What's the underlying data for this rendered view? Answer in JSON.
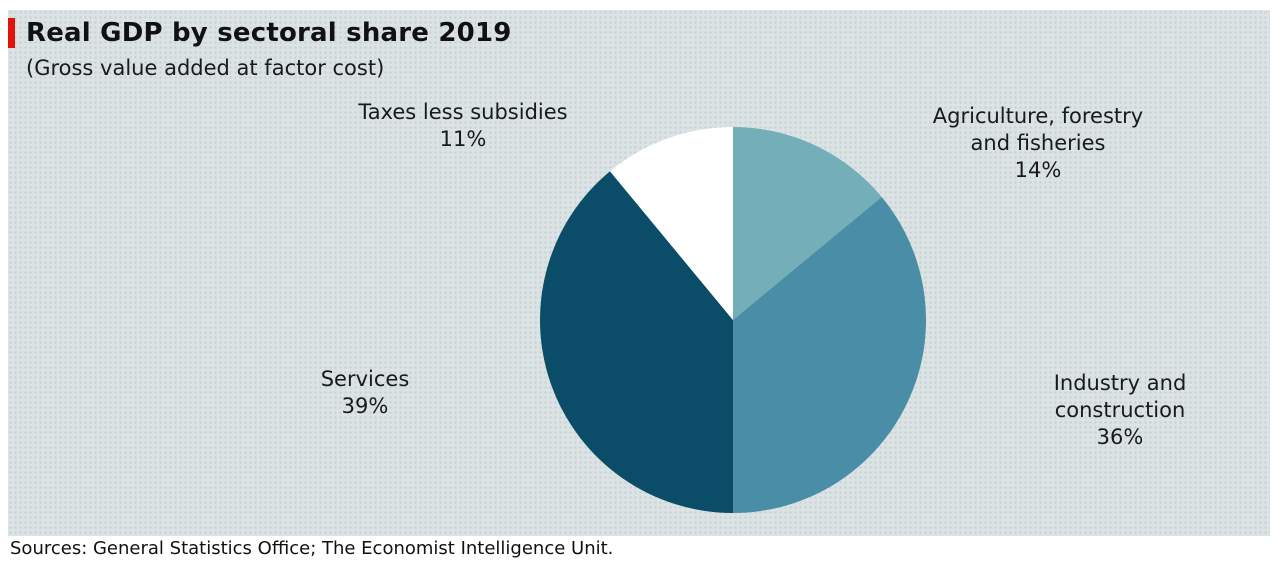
{
  "title": "Real GDP  by sectoral share 2019",
  "subtitle": "(Gross value added at factor cost)",
  "source": "Sources: General Statistics Office; The Economist Intelligence  Unit.",
  "colors": {
    "accent": "#e3120b",
    "background": "#dbe3e4"
  },
  "chart_data": {
    "type": "pie",
    "title": "Real GDP  by sectoral share 2019",
    "subtitle": "(Gross value added at factor cost)",
    "slices": [
      {
        "label_lines": [
          "Agriculture, forestry",
          "and fisheries"
        ],
        "value": 14,
        "value_text": "14%",
        "color": "#74aeb9"
      },
      {
        "label_lines": [
          "Industry and",
          "construction"
        ],
        "value": 36,
        "value_text": "36%",
        "color": "#4a8da7"
      },
      {
        "label_lines": [
          "Services"
        ],
        "value": 39,
        "value_text": "39%",
        "color": "#0b4d68"
      },
      {
        "label_lines": [
          "Taxes less subsidies"
        ],
        "value": 11,
        "value_text": "11%",
        "color": "#ffffff"
      }
    ]
  }
}
